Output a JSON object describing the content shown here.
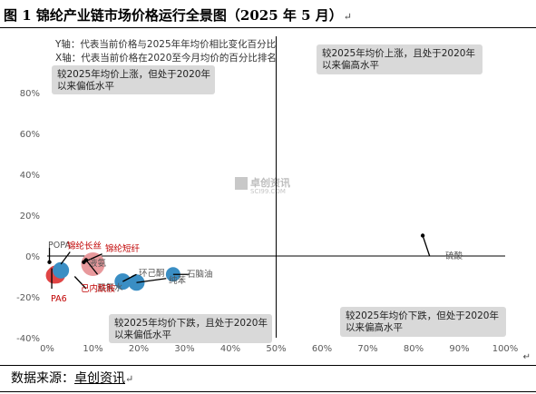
{
  "title": "图 1 锦纶产业链市场价格运行全景图（2025 年 5 月）",
  "source_label": "数据来源：",
  "source_name": "卓创资讯",
  "para_mark": "↵",
  "watermark": {
    "name": "卓创资讯",
    "url": "SCI99.COM"
  },
  "colors": {
    "red": "#e04545",
    "red_light": "#e8999c",
    "blue": "#3a8ec4",
    "label_red": "#c00000",
    "label_gray": "#555555",
    "box": "#d9d9d9"
  },
  "chart_data": {
    "type": "scatter",
    "title": "",
    "xlabel": "",
    "ylabel": "",
    "xlim": [
      0,
      100
    ],
    "ylim": [
      -40,
      80
    ],
    "x_ticks": [
      "0%",
      "10%",
      "20%",
      "30%",
      "40%",
      "50%",
      "60%",
      "70%",
      "80%",
      "90%",
      "100%"
    ],
    "y_ticks": [
      "80%",
      "60%",
      "40%",
      "20%",
      "0%",
      "-20%",
      "-40%"
    ],
    "x_tick_values": [
      0,
      10,
      20,
      30,
      40,
      50,
      60,
      70,
      80,
      90,
      100
    ],
    "y_tick_values": [
      80,
      60,
      40,
      20,
      0,
      -20,
      -40
    ],
    "divider_x": 50,
    "axis_notes": [
      "Y轴：代表当前价格与2025年年均价相比变化百分比",
      "X轴：代表当前价格在2020至今月均价的百分比排名"
    ],
    "quadrant_notes": [
      {
        "position": "top-left",
        "text": [
          "较2025年均价上涨，但处于2020年",
          "以来偏低水平"
        ]
      },
      {
        "position": "top-right",
        "text": [
          "较2025年均价上涨，且处于2020年",
          "以来偏高水平"
        ]
      },
      {
        "position": "bottom-left",
        "text": [
          "较2025年均价下跌，且处于2020年",
          "以来偏低水平"
        ]
      },
      {
        "position": "bottom-right",
        "text": [
          "较2025年均价下跌，但处于2020年",
          "以来偏高水平"
        ]
      }
    ],
    "points": [
      {
        "name": "硫酸",
        "x": 82,
        "y": 10,
        "color": "#000000",
        "label_color": "#555555"
      },
      {
        "name": "POPA",
        "x": 0.5,
        "y": -3,
        "color": "#000000",
        "label_color": "#555555"
      },
      {
        "name": "锦纶长丝",
        "x": 3,
        "y": -7,
        "color": "#3a8ec4",
        "label_color": "#c00000"
      },
      {
        "name": "锦纶短纤",
        "x": 8,
        "y": -3,
        "color": "#000000",
        "label_color": "#c00000"
      },
      {
        "name": "液氨",
        "x": 10,
        "y": -4,
        "color": "#e8999c",
        "label_color": "#555555"
      },
      {
        "name": "双氧水",
        "x": 8.5,
        "y": -2,
        "color": "#000000",
        "label_color": "#555555"
      },
      {
        "name": "己内酰胺",
        "x": 2,
        "y": -9,
        "color": "#e04545",
        "label_color": "#c00000"
      },
      {
        "name": "PA6",
        "x": 1.5,
        "y": -9.5,
        "color": "#e04545",
        "label_color": "#c00000"
      },
      {
        "name": "环己酮",
        "x": 16.5,
        "y": -12.5,
        "color": "#3a8ec4",
        "label_color": "#555555"
      },
      {
        "name": "纯苯",
        "x": 19.5,
        "y": -13,
        "color": "#3a8ec4",
        "label_color": "#555555"
      },
      {
        "name": "石脑油",
        "x": 27.5,
        "y": -9,
        "color": "#3a8ec4",
        "label_color": "#555555"
      }
    ]
  }
}
